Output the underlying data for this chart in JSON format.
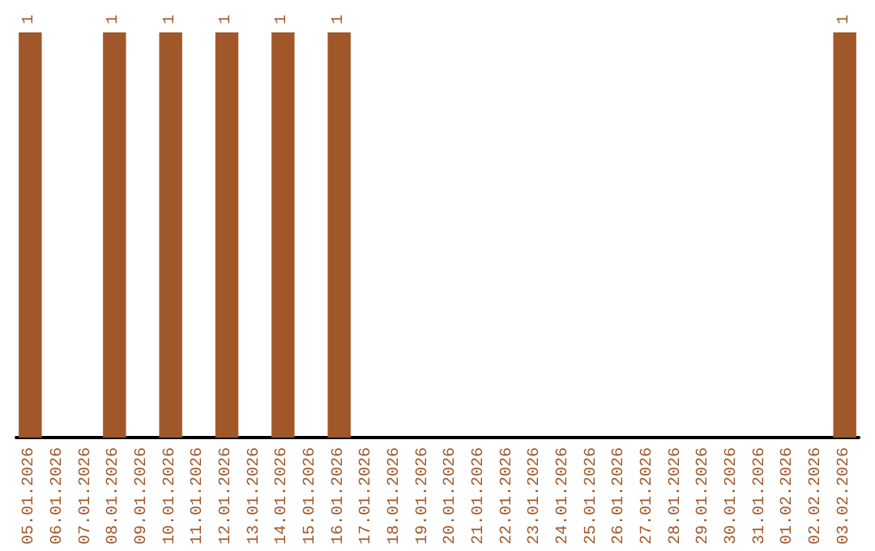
{
  "chart_data": {
    "type": "bar",
    "categories": [
      "05.01.2026",
      "06.01.2026",
      "07.01.2026",
      "08.01.2026",
      "09.01.2026",
      "10.01.2026",
      "11.01.2026",
      "12.01.2026",
      "13.01.2026",
      "14.01.2026",
      "15.01.2026",
      "16.01.2026",
      "17.01.2026",
      "18.01.2026",
      "19.01.2026",
      "20.01.2026",
      "21.01.2026",
      "22.01.2026",
      "23.01.2026",
      "24.01.2026",
      "25.01.2026",
      "26.01.2026",
      "27.01.2026",
      "28.01.2026",
      "29.01.2026",
      "30.01.2026",
      "31.01.2026",
      "01.02.2026",
      "02.02.2026",
      "03.02.2026"
    ],
    "values": [
      1,
      0,
      0,
      1,
      0,
      1,
      0,
      1,
      0,
      1,
      0,
      1,
      0,
      0,
      0,
      0,
      0,
      0,
      0,
      0,
      0,
      0,
      0,
      0,
      0,
      0,
      0,
      0,
      0,
      1
    ],
    "value_labels": [
      "1",
      null,
      null,
      "1",
      null,
      "1",
      null,
      "1",
      null,
      "1",
      null,
      "1",
      null,
      null,
      null,
      null,
      null,
      null,
      null,
      null,
      null,
      null,
      null,
      null,
      null,
      null,
      null,
      null,
      null,
      "1"
    ],
    "color": "#a0582a",
    "grid": false
  }
}
